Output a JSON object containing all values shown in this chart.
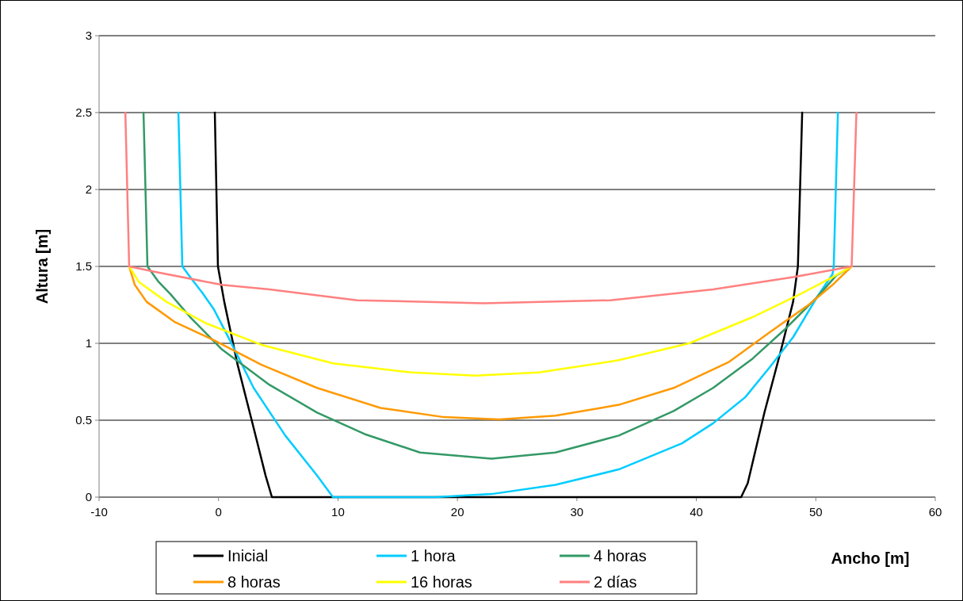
{
  "chart_data": {
    "type": "line",
    "xlabel": "Ancho [m]",
    "ylabel": "Altura [m]",
    "xlim": [
      -10,
      60
    ],
    "xticks": [
      -10,
      0,
      10,
      20,
      30,
      40,
      50,
      60
    ],
    "ylim": [
      0,
      3
    ],
    "yticks": [
      0,
      0.5,
      1,
      1.5,
      2,
      2.5,
      3
    ],
    "grid": "y",
    "legend": "bottom",
    "marker": "none",
    "line_style": "solid",
    "series": [
      {
        "name": "Inicial",
        "color": "#000000",
        "x": [
          -0.31,
          -0.05,
          0.48,
          1.6,
          2.94,
          3.94,
          4.47,
          43.75,
          44.3,
          45.7,
          47.1,
          48.1,
          48.5,
          48.86
        ],
        "values": [
          2.5,
          1.5,
          1.27,
          0.86,
          0.45,
          0.14,
          0,
          0,
          0.09,
          0.55,
          0.96,
          1.27,
          1.5,
          2.5
        ]
      },
      {
        "name": "1 hora",
        "color": "#00ccff",
        "x": [
          -3.36,
          -3.03,
          -2.37,
          -1.37,
          -0.38,
          0.95,
          2.94,
          5.59,
          8.25,
          9.58,
          18.2,
          22.85,
          28.2,
          33.5,
          38.8,
          41.4,
          44.1,
          46.1,
          48.1,
          50.1,
          51.4,
          51.5,
          51.85
        ],
        "values": [
          2.5,
          1.5,
          1.43,
          1.33,
          1.22,
          1.02,
          0.71,
          0.4,
          0.14,
          0,
          0,
          0.02,
          0.08,
          0.18,
          0.35,
          0.48,
          0.65,
          0.84,
          1.04,
          1.3,
          1.45,
          1.5,
          2.5
        ]
      },
      {
        "name": "4 horas",
        "color": "#339966",
        "x": [
          -6.28,
          -5.95,
          -5.02,
          -4.03,
          -2.37,
          0.29,
          4.27,
          8.25,
          12.23,
          16.87,
          22.85,
          28.2,
          33.5,
          38.1,
          41.4,
          44.7,
          47.4,
          50.1,
          51.7,
          53.0
        ],
        "values": [
          2.5,
          1.5,
          1.4,
          1.32,
          1.17,
          0.96,
          0.73,
          0.55,
          0.41,
          0.29,
          0.25,
          0.29,
          0.4,
          0.56,
          0.71,
          0.9,
          1.09,
          1.3,
          1.44,
          1.5
        ]
      },
      {
        "name": "8 horas",
        "color": "#ff9900",
        "x": [
          -7.48,
          -7.01,
          -6.02,
          -3.7,
          -0.38,
          3.6,
          8.25,
          13.56,
          18.87,
          23.5,
          28.2,
          33.5,
          38.1,
          42.75,
          46.1,
          49.4,
          51.4,
          53.0
        ],
        "values": [
          1.5,
          1.38,
          1.27,
          1.14,
          1.02,
          0.86,
          0.71,
          0.58,
          0.52,
          0.505,
          0.53,
          0.6,
          0.71,
          0.88,
          1.07,
          1.25,
          1.38,
          1.5
        ]
      },
      {
        "name": "16 horas",
        "color": "#ffff00",
        "x": [
          -7.48,
          -6.68,
          -4.36,
          -1.04,
          3.6,
          9.58,
          16.2,
          21.5,
          26.8,
          33.5,
          39.4,
          44.7,
          48.7,
          51.4,
          53.0
        ],
        "values": [
          1.5,
          1.4,
          1.27,
          1.13,
          0.99,
          0.87,
          0.81,
          0.79,
          0.81,
          0.89,
          1.0,
          1.17,
          1.32,
          1.43,
          1.5
        ]
      },
      {
        "name": "2 días",
        "color": "#ff8080",
        "x": [
          -7.8,
          -7.48,
          -5.02,
          0.29,
          4.27,
          11.6,
          22.2,
          32.8,
          41.4,
          48.1,
          53.0,
          53.4
        ],
        "values": [
          2.5,
          1.5,
          1.46,
          1.38,
          1.35,
          1.28,
          1.26,
          1.28,
          1.35,
          1.43,
          1.5,
          2.5
        ]
      }
    ]
  }
}
